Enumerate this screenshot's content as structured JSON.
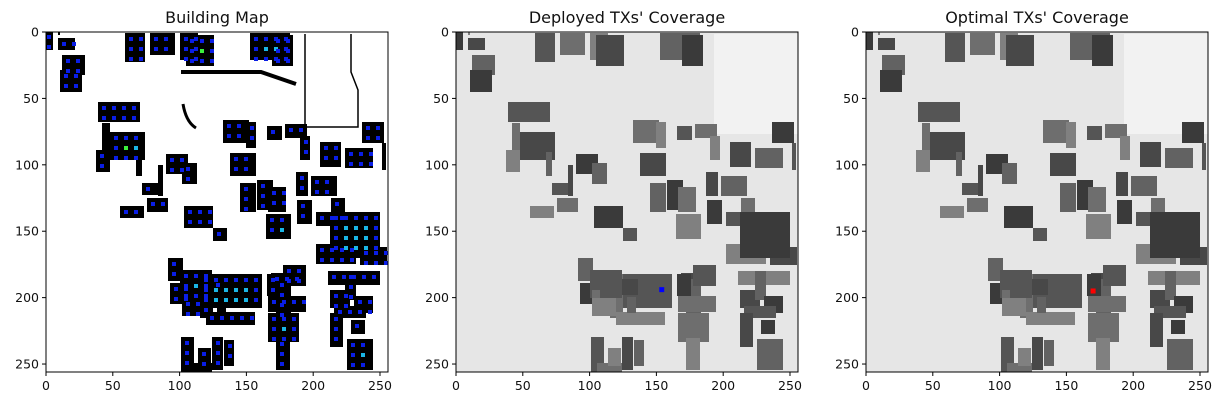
{
  "colors": {
    "building": "#000000",
    "background": "#ffffff",
    "marker_blue": "#0a1ee6",
    "marker_cyan": "#1ab6e6",
    "marker_green": "#3cf03c",
    "coverage_bg": "#e6e6e6",
    "building_gray": "#6e6e6e",
    "deployed_tx": "#0000ff",
    "optimal_tx": "#ff0000"
  },
  "chart_data": [
    {
      "type": "heatmap",
      "title": "Building Map",
      "xlim": [
        0,
        256
      ],
      "ylim": [
        256,
        0
      ],
      "xticks": [
        0,
        50,
        100,
        150,
        200,
        250
      ],
      "yticks": [
        0,
        50,
        100,
        150,
        200,
        250
      ],
      "grid": false
    },
    {
      "type": "heatmap",
      "title": "Deployed TXs' Coverage",
      "xlim": [
        0,
        256
      ],
      "ylim": [
        256,
        0
      ],
      "xticks": [
        0,
        50,
        100,
        150,
        200,
        250
      ],
      "yticks": [
        0,
        50,
        100,
        150,
        200,
        250
      ],
      "grid": false,
      "tx_points": [
        {
          "x": 154,
          "y": 194
        }
      ]
    },
    {
      "type": "heatmap",
      "title": "Optimal TXs' Coverage",
      "xlim": [
        0,
        256
      ],
      "ylim": [
        256,
        0
      ],
      "xticks": [
        0,
        50,
        100,
        150,
        200,
        250
      ],
      "yticks": [
        0,
        50,
        100,
        150,
        200,
        250
      ],
      "grid": false,
      "tx_points": [
        {
          "x": 170,
          "y": 195
        }
      ]
    }
  ],
  "buildings": [
    [
      43,
      21,
      53,
      50
    ],
    [
      52,
      27,
      68,
      32
    ],
    [
      35,
      5,
      41,
      11
    ],
    [
      58,
      26,
      60,
      35
    ],
    [
      58,
      38,
      75,
      50
    ],
    [
      62,
      55,
      85,
      75
    ],
    [
      60,
      70,
      82,
      92
    ],
    [
      98,
      102,
      140,
      122
    ],
    [
      102,
      123,
      110,
      150
    ],
    [
      96,
      150,
      110,
      172
    ],
    [
      110,
      132,
      145,
      160
    ],
    [
      136,
      152,
      142,
      176
    ],
    [
      166,
      154,
      188,
      174
    ],
    [
      142,
      183,
      158,
      195
    ],
    [
      147,
      198,
      168,
      212
    ],
    [
      120,
      206,
      144,
      218
    ],
    [
      158,
      165,
      163,
      196
    ],
    [
      182,
      163,
      197,
      184
    ],
    [
      184,
      206,
      213,
      228
    ],
    [
      213,
      228,
      227,
      241
    ],
    [
      223,
      120,
      249,
      143
    ],
    [
      246,
      122,
      256,
      148
    ],
    [
      230,
      153,
      256,
      176
    ],
    [
      240,
      183,
      256,
      212
    ],
    [
      257,
      180,
      273,
      210
    ],
    [
      267,
      126,
      282,
      140
    ],
    [
      285,
      124,
      307,
      138
    ],
    [
      300,
      136,
      310,
      160
    ],
    [
      320,
      142,
      341,
      167
    ],
    [
      345,
      148,
      373,
      168
    ],
    [
      362,
      122,
      384,
      143
    ],
    [
      382,
      143,
      386,
      170
    ],
    [
      268,
      187,
      286,
      212
    ],
    [
      266,
      214,
      291,
      239
    ],
    [
      296,
      172,
      308,
      196
    ],
    [
      311,
      176,
      337,
      196
    ],
    [
      297,
      200,
      312,
      224
    ],
    [
      316,
      212,
      343,
      226
    ],
    [
      331,
      198,
      345,
      212
    ],
    [
      316,
      244,
      356,
      264
    ],
    [
      360,
      247,
      387,
      265
    ],
    [
      168,
      258,
      183,
      281
    ],
    [
      170,
      283,
      193,
      304
    ],
    [
      200,
      274,
      262,
      308
    ],
    [
      200,
      274,
      213,
      318
    ],
    [
      206,
      312,
      255,
      325
    ],
    [
      271,
      273,
      301,
      284
    ],
    [
      276,
      279,
      291,
      316
    ],
    [
      330,
      212,
      380,
      258
    ]
  ],
  "topBuildings": [
    [
      125,
      33,
      145,
      62
    ],
    [
      150,
      33,
      175,
      55
    ],
    [
      180,
      33,
      198,
      60
    ],
    [
      186,
      35,
      214,
      66
    ],
    [
      250,
      33,
      290,
      60
    ],
    [
      272,
      35,
      293,
      66
    ]
  ],
  "lowerBuildings": [
    [
      180,
      270,
      212,
      298
    ],
    [
      182,
      290,
      190,
      312
    ],
    [
      182,
      298,
      206,
      316
    ],
    [
      212,
      279,
      228,
      295
    ],
    [
      217,
      297,
      226,
      313
    ],
    [
      267,
      274,
      281,
      296
    ],
    [
      283,
      265,
      306,
      286
    ],
    [
      268,
      296,
      306,
      312
    ],
    [
      328,
      271,
      380,
      285
    ],
    [
      330,
      290,
      350,
      308
    ],
    [
      345,
      271,
      356,
      300
    ],
    [
      354,
      296,
      373,
      313
    ],
    [
      334,
      306,
      366,
      318
    ],
    [
      268,
      313,
      299,
      342
    ],
    [
      276,
      338,
      290,
      370
    ],
    [
      330,
      313,
      343,
      347
    ],
    [
      347,
      339,
      373,
      370
    ],
    [
      351,
      320,
      365,
      334
    ],
    [
      181,
      337,
      194,
      372
    ],
    [
      187,
      363,
      212,
      372
    ],
    [
      198,
      348,
      211,
      366
    ],
    [
      212,
      337,
      223,
      370
    ],
    [
      224,
      340,
      234,
      366
    ]
  ]
}
